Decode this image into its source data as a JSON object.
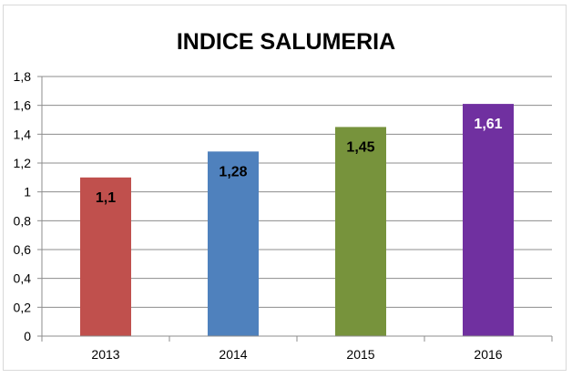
{
  "chart_data": {
    "type": "bar",
    "title": "INDICE SALUMERIA",
    "categories": [
      "2013",
      "2014",
      "2015",
      "2016"
    ],
    "values": [
      1.1,
      1.28,
      1.45,
      1.61
    ],
    "value_labels": [
      "1,1",
      "1,28",
      "1,45",
      "1,61"
    ],
    "bar_colors": [
      "#c0504d",
      "#4f81bd",
      "#77933c",
      "#7030a0"
    ],
    "label_colors": [
      "#000000",
      "#000000",
      "#000000",
      "#ffffff"
    ],
    "ylim": [
      0,
      1.8
    ],
    "yticks": [
      "0",
      "0,2",
      "0,4",
      "0,6",
      "0,8",
      "1",
      "1,2",
      "1,4",
      "1,6",
      "1,8"
    ],
    "grid": true,
    "legend": "none"
  }
}
